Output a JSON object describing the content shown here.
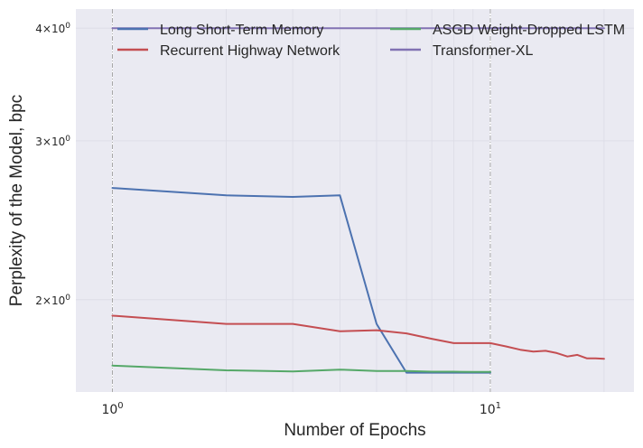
{
  "chart_data": {
    "type": "line",
    "xlabel": "Number of Epochs",
    "ylabel": "Perplexity of the Model, bpc",
    "xscale": "log",
    "yscale": "log",
    "xlim": [
      0.8,
      24
    ],
    "ylim": [
      1.58,
      4.2
    ],
    "grid": true,
    "legend_placement": "top, two columns",
    "x_ticks": [
      {
        "value": 1,
        "base": "10",
        "exp": "0"
      },
      {
        "value": 10,
        "base": "10",
        "exp": "1"
      }
    ],
    "y_ticks": [
      {
        "value": 2,
        "mant": "2",
        "base": "10",
        "exp": "0"
      },
      {
        "value": 3,
        "mant": "3",
        "base": "10",
        "exp": "0"
      },
      {
        "value": 4,
        "mant": "4",
        "base": "10",
        "exp": "0"
      }
    ],
    "vlines": [
      1,
      10
    ],
    "series": [
      {
        "name": "Long Short-Term Memory",
        "color": "#4C72B0",
        "x": [
          1,
          2,
          3,
          4,
          5,
          6,
          7,
          8,
          9,
          10
        ],
        "y": [
          2.66,
          2.61,
          2.6,
          2.61,
          1.88,
          1.66,
          1.66,
          1.66,
          1.66,
          1.66
        ]
      },
      {
        "name": "ASGD Weight-Dropped LSTM",
        "color": "#55A868",
        "x": [
          1,
          2,
          3,
          4,
          5,
          6,
          7,
          8,
          9,
          10
        ],
        "y": [
          1.69,
          1.67,
          1.665,
          1.673,
          1.667,
          1.667,
          1.664,
          1.664,
          1.663,
          1.663
        ]
      },
      {
        "name": "Recurrent Highway Network",
        "color": "#C44E52",
        "x": [
          1,
          2,
          3,
          4,
          5,
          6,
          7,
          8,
          9,
          10,
          11,
          12,
          13,
          14,
          15,
          16,
          17,
          18,
          19,
          20
        ],
        "y": [
          1.92,
          1.88,
          1.88,
          1.845,
          1.85,
          1.835,
          1.81,
          1.79,
          1.79,
          1.79,
          1.775,
          1.76,
          1.752,
          1.755,
          1.745,
          1.73,
          1.737,
          1.722,
          1.722,
          1.72
        ]
      },
      {
        "name": "Transformer-XL",
        "color": "#8172B3",
        "x": [
          1,
          2,
          3,
          4,
          5,
          6,
          7,
          8,
          9,
          10,
          11,
          12,
          13,
          14,
          15,
          16,
          17,
          18,
          19,
          20
        ],
        "y": [
          4.0,
          4.0,
          4.0,
          4.0,
          4.0,
          4.0,
          4.0,
          4.0,
          4.0,
          4.0,
          4.0,
          4.0,
          4.0,
          4.0,
          4.0,
          4.0,
          4.0,
          4.0,
          4.0,
          4.0
        ]
      }
    ]
  }
}
